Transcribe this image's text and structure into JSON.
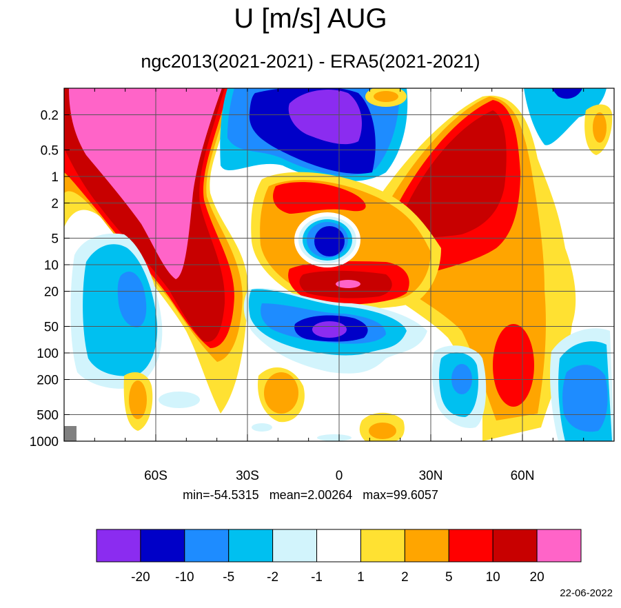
{
  "title": "U [m/s] AUG",
  "subtitle": "ngc2013(2021-2021) - ERA5(2021-2021)",
  "stats": "min=-54.5315   mean=2.00264   max=99.6057",
  "date": "22-06-2022",
  "chart_data": {
    "type": "heatmap",
    "title": "U [m/s] AUG",
    "subtitle": "ngc2013(2021-2021) - ERA5(2021-2021)",
    "x_axis": {
      "range": [
        -90,
        90
      ],
      "ticks": [
        -60,
        -30,
        0,
        30,
        60
      ],
      "tick_labels": [
        "60S",
        "30S",
        "0",
        "30N",
        "60N"
      ]
    },
    "y_axis": {
      "scale": "log",
      "inverted": true,
      "range": [
        1000,
        0.1
      ],
      "ticks": [
        0.2,
        0.5,
        1,
        2,
        5,
        10,
        20,
        50,
        100,
        200,
        500,
        1000
      ],
      "tick_labels": [
        "0.2",
        "0.5",
        "1",
        "2",
        "5",
        "10",
        "20",
        "50",
        "100",
        "200",
        "500",
        "1000"
      ]
    },
    "grid": true,
    "colorbar": {
      "levels": [
        "-20",
        "-10",
        "-5",
        "-2",
        "-1",
        "1",
        "2",
        "5",
        "10",
        "20"
      ],
      "colors": [
        "#8b2cf0",
        "#0000c8",
        "#1e8cff",
        "#00c0f0",
        "#d2f4fc",
        "#ffffff",
        "#ffe132",
        "#ffa500",
        "#ff0000",
        "#c80000",
        "#ff64c8"
      ]
    },
    "stats": {
      "min": -54.5315,
      "mean": 2.00264,
      "max": 99.6057
    },
    "features": [
      {
        "lat": -65,
        "p": 0.3,
        "value": 30,
        "desc": "strong positive SH stratosphere"
      },
      {
        "lat": -3,
        "p": 0.25,
        "value": -25,
        "desc": "negative upper equatorial"
      },
      {
        "lat": -2,
        "p": 5,
        "value": -15,
        "desc": "negative equatorial core"
      },
      {
        "lat": -3,
        "p": 60,
        "value": -25,
        "desc": "negative tropopause equator"
      },
      {
        "lat": -42,
        "p": 20,
        "value": 15,
        "desc": "positive SH midlat"
      },
      {
        "lat": 50,
        "p": 2,
        "value": 15,
        "desc": "positive NH strato"
      },
      {
        "lat": 57,
        "p": 150,
        "value": 12,
        "desc": "positive NH trop jet"
      },
      {
        "lat": -72,
        "p": 40,
        "value": -6,
        "desc": "negative SH highlat"
      },
      {
        "lat": 82,
        "p": 250,
        "value": -7,
        "desc": "negative arctic"
      }
    ]
  }
}
